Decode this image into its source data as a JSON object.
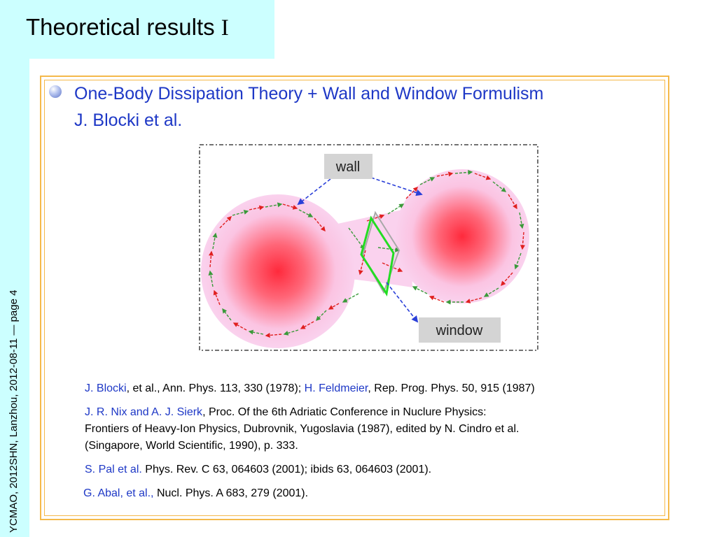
{
  "slide": {
    "title_text": "Theoretical results ",
    "title_roman": "I",
    "side_label": "YCMAO, 2012SHN, Lanzhou, 2012-08-11 — page 4"
  },
  "content": {
    "heading_line1": "One-Body Dissipation Theory + Wall and Window Formulism",
    "heading_line2": "J. Blocki et al."
  },
  "figure": {
    "wall_label": "wall",
    "window_label": "window",
    "colors": {
      "nucleus_center": "#ff2a3c",
      "neck": "#fad2ee",
      "arrow_red": "#e02020",
      "arrow_green": "#3a9a3a",
      "arrow_blue": "#2a3fd8",
      "window_green": "#22dd22"
    }
  },
  "references": [
    {
      "a": "J. Blocki",
      "b": ", et al., Ann. Phys. 113, 330 (1978); ",
      "c": "H. Feldmeier",
      "d": ", Rep. Prog. Phys. 50, 915 (1987)"
    },
    {
      "a": "J. R. Nix and A. J. Sierk",
      "b": ", Proc. Of the 6th Adriatic Conference in Nuclure Physics:"
    },
    {
      "text": "Frontiers of Heavy-Ion Physics, Dubrovnik, Yugoslavia (1987), edited by N. Cindro et al."
    },
    {
      "text": "(Singapore, World Scientific, 1990), p. 333."
    },
    {
      "a": "S. Pal et al.",
      "b": " Phys. Rev. C 63, 064603 (2001); ibids 63, 064603 (2001)."
    },
    {
      "a": "G. Abal, et al.,",
      "b": " Nucl. Phys. A 683, 279 (2001)."
    }
  ]
}
